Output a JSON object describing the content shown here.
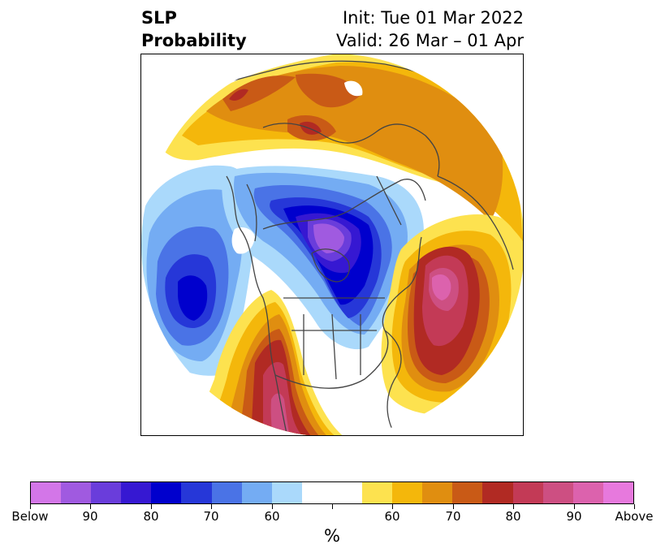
{
  "title": {
    "line1": "SLP",
    "line2": "Probability",
    "init": "Init: Tue 01 Mar 2022",
    "valid": "Valid: 26 Mar – 01 Apr"
  },
  "colorbar": {
    "unit": "%",
    "colors": [
      "#d376e8",
      "#a05ae0",
      "#6a3ddb",
      "#3618d2",
      "#0000cd",
      "#2637d8",
      "#4a73e6",
      "#74acf3",
      "#aad9fb",
      "#ffffff",
      "#ffffff",
      "#fde24f",
      "#f4b70b",
      "#e08e10",
      "#c95a16",
      "#b12a23",
      "#c33a56",
      "#cd4f82",
      "#dc62ad",
      "#e779dd"
    ],
    "tick_labels": [
      "Below",
      "90",
      "80",
      "70",
      "60",
      "",
      "60",
      "70",
      "80",
      "90",
      "Above"
    ]
  },
  "map": {
    "land_outline_color": "#444444",
    "anomalies": [
      {
        "name": "low-pacific",
        "category": "below",
        "peak": 80
      },
      {
        "name": "low-north-america",
        "category": "below",
        "peak": 90
      },
      {
        "name": "high-atlantic",
        "category": "above",
        "peak": 90
      },
      {
        "name": "high-western-us",
        "category": "above",
        "peak": 80
      },
      {
        "name": "high-eurasia-arctic",
        "category": "above",
        "peak": 70
      }
    ]
  }
}
